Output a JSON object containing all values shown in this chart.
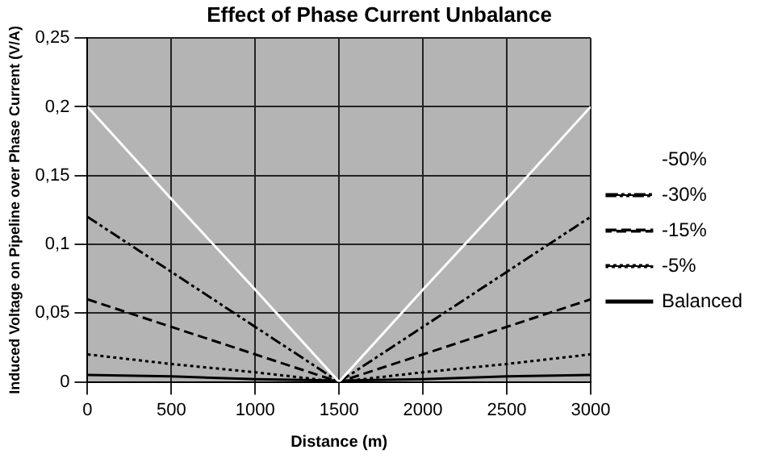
{
  "chart_data": {
    "type": "line",
    "title": "Effect of Phase Current Unbalance",
    "xlabel": "Distance (m)",
    "ylabel": "Induced Voltage on Pipeline over Phase Current (V/A)",
    "x": [
      0,
      500,
      1000,
      1500,
      2000,
      2500,
      3000
    ],
    "series": [
      {
        "name": "-50%",
        "color": "#ffffff",
        "line_style": "solid",
        "values": [
          0.2,
          0.133,
          0.067,
          0,
          0.067,
          0.133,
          0.2
        ]
      },
      {
        "name": "-30%",
        "color": "#000000",
        "line_style": "dashdot",
        "values": [
          0.12,
          0.08,
          0.04,
          0,
          0.04,
          0.08,
          0.12
        ]
      },
      {
        "name": "-15%",
        "color": "#000000",
        "line_style": "dashed",
        "values": [
          0.06,
          0.04,
          0.02,
          0,
          0.02,
          0.04,
          0.06
        ]
      },
      {
        "name": "-5%",
        "color": "#000000",
        "line_style": "dotted",
        "values": [
          0.02,
          0.013,
          0.007,
          0,
          0.007,
          0.013,
          0.02
        ]
      },
      {
        "name": "Balanced",
        "color": "#000000",
        "line_style": "solid",
        "values": [
          0.005,
          0.004,
          0.002,
          0.001,
          0.002,
          0.004,
          0.005
        ]
      }
    ],
    "xlim": [
      0,
      3000
    ],
    "xticks": [
      0,
      500,
      1000,
      1500,
      2000,
      2500,
      3000
    ],
    "ylim": [
      0,
      0.25
    ],
    "yticks": [
      0,
      {
        "value": 0.05,
        "label": "0,05"
      },
      {
        "value": 0.1,
        "label": "0,1"
      },
      {
        "value": 0.15,
        "label": "0,15"
      },
      {
        "value": 0.2,
        "label": "0,2"
      },
      {
        "value": 0.25,
        "label": "0,25"
      }
    ],
    "grid": true,
    "legend": "right",
    "marker": "none"
  }
}
